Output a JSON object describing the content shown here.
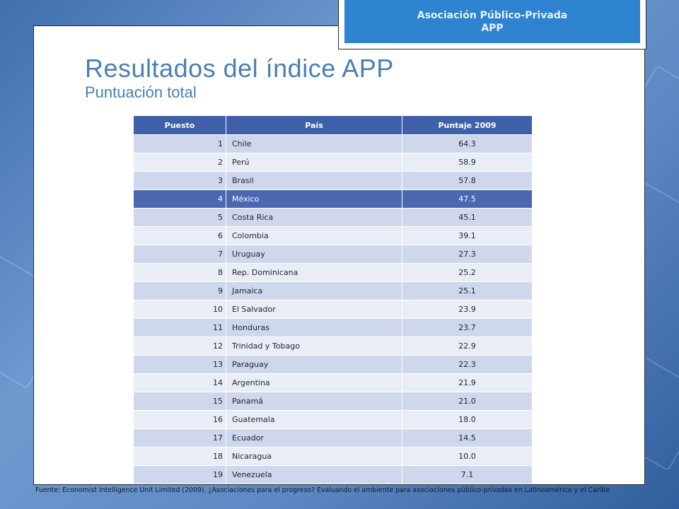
{
  "header": {
    "line1": "Asociación Público-Privada",
    "line2": "APP"
  },
  "title": "Resultados del índice APP",
  "subtitle": "Puntuación total",
  "table": {
    "headers": [
      "Puesto",
      "País",
      "Puntaje 2009"
    ],
    "rows": [
      {
        "rank": "1",
        "country": "Chile",
        "score": "64.3"
      },
      {
        "rank": "2",
        "country": "Perú",
        "score": "58.9"
      },
      {
        "rank": "3",
        "country": "Brasil",
        "score": "57.8"
      },
      {
        "rank": "4",
        "country": "México",
        "score": "47.5"
      },
      {
        "rank": "5",
        "country": "Costa Rica",
        "score": "45.1"
      },
      {
        "rank": "6",
        "country": "Colombia",
        "score": "39.1"
      },
      {
        "rank": "7",
        "country": "Uruguay",
        "score": "27.3"
      },
      {
        "rank": "8",
        "country": "Rep. Dominicana",
        "score": "25.2"
      },
      {
        "rank": "9",
        "country": "Jamaica",
        "score": "25.1"
      },
      {
        "rank": "10",
        "country": "El Salvador",
        "score": "23.9"
      },
      {
        "rank": "11",
        "country": "Honduras",
        "score": "23.7"
      },
      {
        "rank": "12",
        "country": "Trinidad y Tobago",
        "score": "22.9"
      },
      {
        "rank": "13",
        "country": "Paraguay",
        "score": "22.3"
      },
      {
        "rank": "14",
        "country": "Argentina",
        "score": "21.9"
      },
      {
        "rank": "15",
        "country": "Panamá",
        "score": "21.0"
      },
      {
        "rank": "16",
        "country": "Guatemala",
        "score": "18.0"
      },
      {
        "rank": "17",
        "country": "Ecuador",
        "score": "14.5"
      },
      {
        "rank": "18",
        "country": "Nicaragua",
        "score": "10.0"
      },
      {
        "rank": "19",
        "country": "Venezuela",
        "score": "7.1"
      }
    ],
    "highlight_rank": "4"
  },
  "footer": "Fuente: Economist Intelligence Unit Limited (2009). ¿Asociaciones para el progreso? Evaluando el ambiente para asociaciones público-privadas en Latinoamérica y el Caribe",
  "colors": {
    "accent": "#2e83d0",
    "title": "#4b7fb3",
    "table_header": "#3f5fa8",
    "row_odd": "#cfd7ec",
    "row_even": "#e9edf6",
    "row_highlight": "#4a67b0"
  }
}
